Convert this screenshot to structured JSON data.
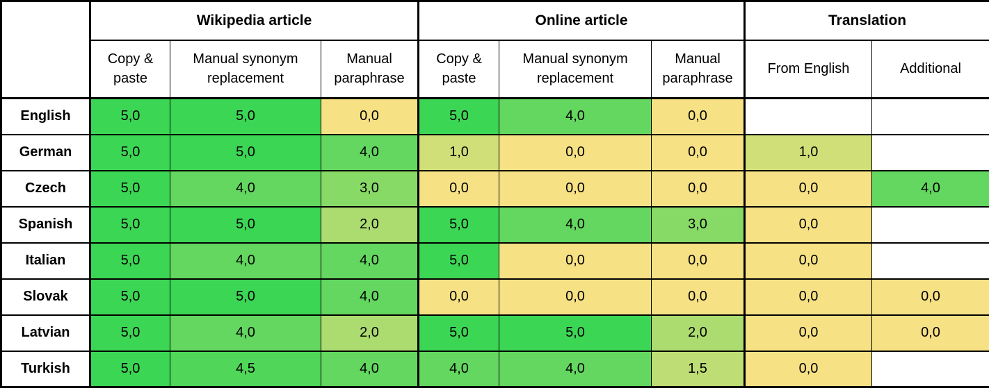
{
  "table": {
    "corner_label": "",
    "groups": [
      {
        "label": "Wikipedia article"
      },
      {
        "label": "Online article"
      },
      {
        "label": "Translation"
      }
    ],
    "columns": [
      "Copy & paste",
      "Manual synonym replacement",
      "Manual paraphrase",
      "Copy & paste",
      "Manual synonym replacement",
      "Manual paraphrase",
      "From English",
      "Additional"
    ],
    "rows": [
      {
        "language": "English",
        "cells": [
          {
            "value": "5,0",
            "color": "#3CD655"
          },
          {
            "value": "5,0",
            "color": "#3CD655"
          },
          {
            "value": "0,0",
            "color": "#F6E184"
          },
          {
            "value": "5,0",
            "color": "#3CD655"
          },
          {
            "value": "4,0",
            "color": "#63D75F"
          },
          {
            "value": "0,0",
            "color": "#F6E184"
          },
          {
            "value": "",
            "color": "#FFFFFF"
          },
          {
            "value": "",
            "color": "#FFFFFF"
          }
        ]
      },
      {
        "language": "German",
        "cells": [
          {
            "value": "5,0",
            "color": "#3CD655"
          },
          {
            "value": "5,0",
            "color": "#3CD655"
          },
          {
            "value": "4,0",
            "color": "#63D75F"
          },
          {
            "value": "1,0",
            "color": "#D1DF79"
          },
          {
            "value": "0,0",
            "color": "#F6E184"
          },
          {
            "value": "0,0",
            "color": "#F6E184"
          },
          {
            "value": "1,0",
            "color": "#D1DF79"
          },
          {
            "value": "",
            "color": "#FFFFFF"
          }
        ]
      },
      {
        "language": "Czech",
        "cells": [
          {
            "value": "5,0",
            "color": "#3CD655"
          },
          {
            "value": "4,0",
            "color": "#63D75F"
          },
          {
            "value": "3,0",
            "color": "#88DA67"
          },
          {
            "value": "0,0",
            "color": "#F6E184"
          },
          {
            "value": "0,0",
            "color": "#F6E184"
          },
          {
            "value": "0,0",
            "color": "#F6E184"
          },
          {
            "value": "0,0",
            "color": "#F6E184"
          },
          {
            "value": "4,0",
            "color": "#63D75F"
          }
        ]
      },
      {
        "language": "Spanish",
        "cells": [
          {
            "value": "5,0",
            "color": "#3CD655"
          },
          {
            "value": "5,0",
            "color": "#3CD655"
          },
          {
            "value": "2,0",
            "color": "#ACDC70"
          },
          {
            "value": "5,0",
            "color": "#3CD655"
          },
          {
            "value": "4,0",
            "color": "#63D75F"
          },
          {
            "value": "3,0",
            "color": "#88DA67"
          },
          {
            "value": "0,0",
            "color": "#F6E184"
          },
          {
            "value": "",
            "color": "#FFFFFF"
          }
        ]
      },
      {
        "language": "Italian",
        "cells": [
          {
            "value": "5,0",
            "color": "#3CD655"
          },
          {
            "value": "4,0",
            "color": "#63D75F"
          },
          {
            "value": "4,0",
            "color": "#63D75F"
          },
          {
            "value": "5,0",
            "color": "#3CD655"
          },
          {
            "value": "0,0",
            "color": "#F6E184"
          },
          {
            "value": "0,0",
            "color": "#F6E184"
          },
          {
            "value": "0,0",
            "color": "#F6E184"
          },
          {
            "value": "",
            "color": "#FFFFFF"
          }
        ]
      },
      {
        "language": "Slovak",
        "cells": [
          {
            "value": "5,0",
            "color": "#3CD655"
          },
          {
            "value": "5,0",
            "color": "#3CD655"
          },
          {
            "value": "4,0",
            "color": "#63D75F"
          },
          {
            "value": "0,0",
            "color": "#F6E184"
          },
          {
            "value": "0,0",
            "color": "#F6E184"
          },
          {
            "value": "0,0",
            "color": "#F6E184"
          },
          {
            "value": "0,0",
            "color": "#F6E184"
          },
          {
            "value": "0,0",
            "color": "#F6E184"
          }
        ]
      },
      {
        "language": "Latvian",
        "cells": [
          {
            "value": "5,0",
            "color": "#3CD655"
          },
          {
            "value": "4,0",
            "color": "#63D75F"
          },
          {
            "value": "2,0",
            "color": "#ACDC70"
          },
          {
            "value": "5,0",
            "color": "#3CD655"
          },
          {
            "value": "5,0",
            "color": "#3CD655"
          },
          {
            "value": "2,0",
            "color": "#ACDC70"
          },
          {
            "value": "0,0",
            "color": "#F6E184"
          },
          {
            "value": "0,0",
            "color": "#F6E184"
          }
        ]
      },
      {
        "language": "Turkish",
        "cells": [
          {
            "value": "5,0",
            "color": "#3CD655"
          },
          {
            "value": "4,5",
            "color": "#50D75A"
          },
          {
            "value": "4,0",
            "color": "#63D75F"
          },
          {
            "value": "4,0",
            "color": "#63D75F"
          },
          {
            "value": "4,0",
            "color": "#63D75F"
          },
          {
            "value": "1,5",
            "color": "#BFDD75"
          },
          {
            "value": "0,0",
            "color": "#F6E184"
          },
          {
            "value": "",
            "color": "#FFFFFF"
          }
        ]
      }
    ]
  },
  "colors": {
    "grid": "#000000",
    "blank_cell": "#FFFFFF",
    "scale_min_yellow": "#F6E184",
    "scale_max_green": "#3CD655"
  },
  "chart_data": {
    "type": "heatmap",
    "title": "",
    "row_labels": [
      "English",
      "German",
      "Czech",
      "Spanish",
      "Italian",
      "Slovak",
      "Latvian",
      "Turkish"
    ],
    "column_groups": [
      {
        "label": "Wikipedia article",
        "columns": [
          "Copy & paste",
          "Manual synonym replacement",
          "Manual paraphrase"
        ]
      },
      {
        "label": "Online article",
        "columns": [
          "Copy & paste",
          "Manual synonym replacement",
          "Manual paraphrase"
        ]
      },
      {
        "label": "Translation",
        "columns": [
          "From English",
          "Additional"
        ]
      }
    ],
    "values": [
      [
        5.0,
        5.0,
        0.0,
        5.0,
        4.0,
        0.0,
        null,
        null
      ],
      [
        5.0,
        5.0,
        4.0,
        1.0,
        0.0,
        0.0,
        1.0,
        null
      ],
      [
        5.0,
        4.0,
        3.0,
        0.0,
        0.0,
        0.0,
        0.0,
        4.0
      ],
      [
        5.0,
        5.0,
        2.0,
        5.0,
        4.0,
        3.0,
        0.0,
        null
      ],
      [
        5.0,
        4.0,
        4.0,
        5.0,
        0.0,
        0.0,
        0.0,
        null
      ],
      [
        5.0,
        5.0,
        4.0,
        0.0,
        0.0,
        0.0,
        0.0,
        0.0
      ],
      [
        5.0,
        4.0,
        2.0,
        5.0,
        5.0,
        2.0,
        0.0,
        null
      ],
      [
        5.0,
        4.5,
        4.0,
        4.0,
        4.0,
        1.5,
        0.0,
        null
      ]
    ],
    "value_range": [
      0,
      5
    ],
    "colorscale": {
      "0": "#F6E184",
      "5": "#3CD655"
    },
    "number_format": "one decimal, comma separator",
    "legend_position": "none",
    "grid": true
  }
}
